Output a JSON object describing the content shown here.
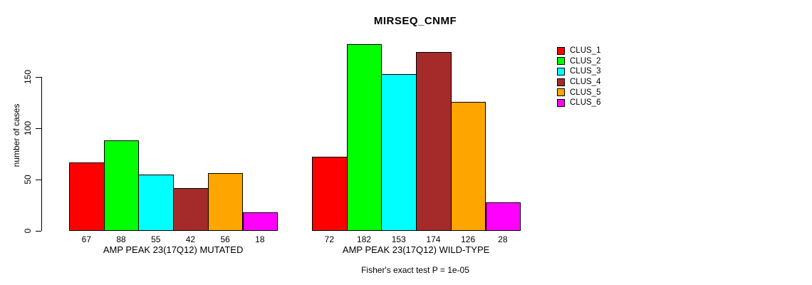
{
  "title": "MIRSEQ_CNMF",
  "y_axis": {
    "label": "number of cases",
    "ticks": [
      "0",
      "50",
      "100",
      "150"
    ]
  },
  "legend": {
    "items": [
      {
        "label": "CLUS_1",
        "color": "#FF0000"
      },
      {
        "label": "CLUS_2",
        "color": "#00FF00"
      },
      {
        "label": "CLUS_3",
        "color": "#00FFFF"
      },
      {
        "label": "CLUS_4",
        "color": "#A52A2A"
      },
      {
        "label": "CLUS_5",
        "color": "#FFA500"
      },
      {
        "label": "CLUS_6",
        "color": "#FF00FF"
      }
    ]
  },
  "annotation": "Fisher's exact test P = 1e-05",
  "chart_data": {
    "type": "bar",
    "title": "MIRSEQ_CNMF",
    "xlabel": "",
    "ylabel": "number of cases",
    "ylim": [
      0,
      185
    ],
    "yticks": [
      0,
      50,
      100,
      150
    ],
    "grid": false,
    "legend_position": "right",
    "categories": [
      "AMP PEAK 23(17Q12) MUTATED",
      "AMP PEAK 23(17Q12) WILD-TYPE"
    ],
    "series": [
      {
        "name": "CLUS_1",
        "color": "#FF0000",
        "values": [
          67,
          72
        ]
      },
      {
        "name": "CLUS_2",
        "color": "#00FF00",
        "values": [
          88,
          182
        ]
      },
      {
        "name": "CLUS_3",
        "color": "#00FFFF",
        "values": [
          55,
          153
        ]
      },
      {
        "name": "CLUS_4",
        "color": "#A52A2A",
        "values": [
          42,
          174
        ]
      },
      {
        "name": "CLUS_5",
        "color": "#FFA500",
        "values": [
          56,
          126
        ]
      },
      {
        "name": "CLUS_6",
        "color": "#FF00FF",
        "values": [
          18,
          28
        ]
      }
    ],
    "bar_value_labels": [
      [
        67,
        88,
        55,
        42,
        56,
        18
      ],
      [
        72,
        182,
        153,
        174,
        126,
        28
      ]
    ],
    "annotation": "Fisher's exact test P = 1e-05"
  }
}
